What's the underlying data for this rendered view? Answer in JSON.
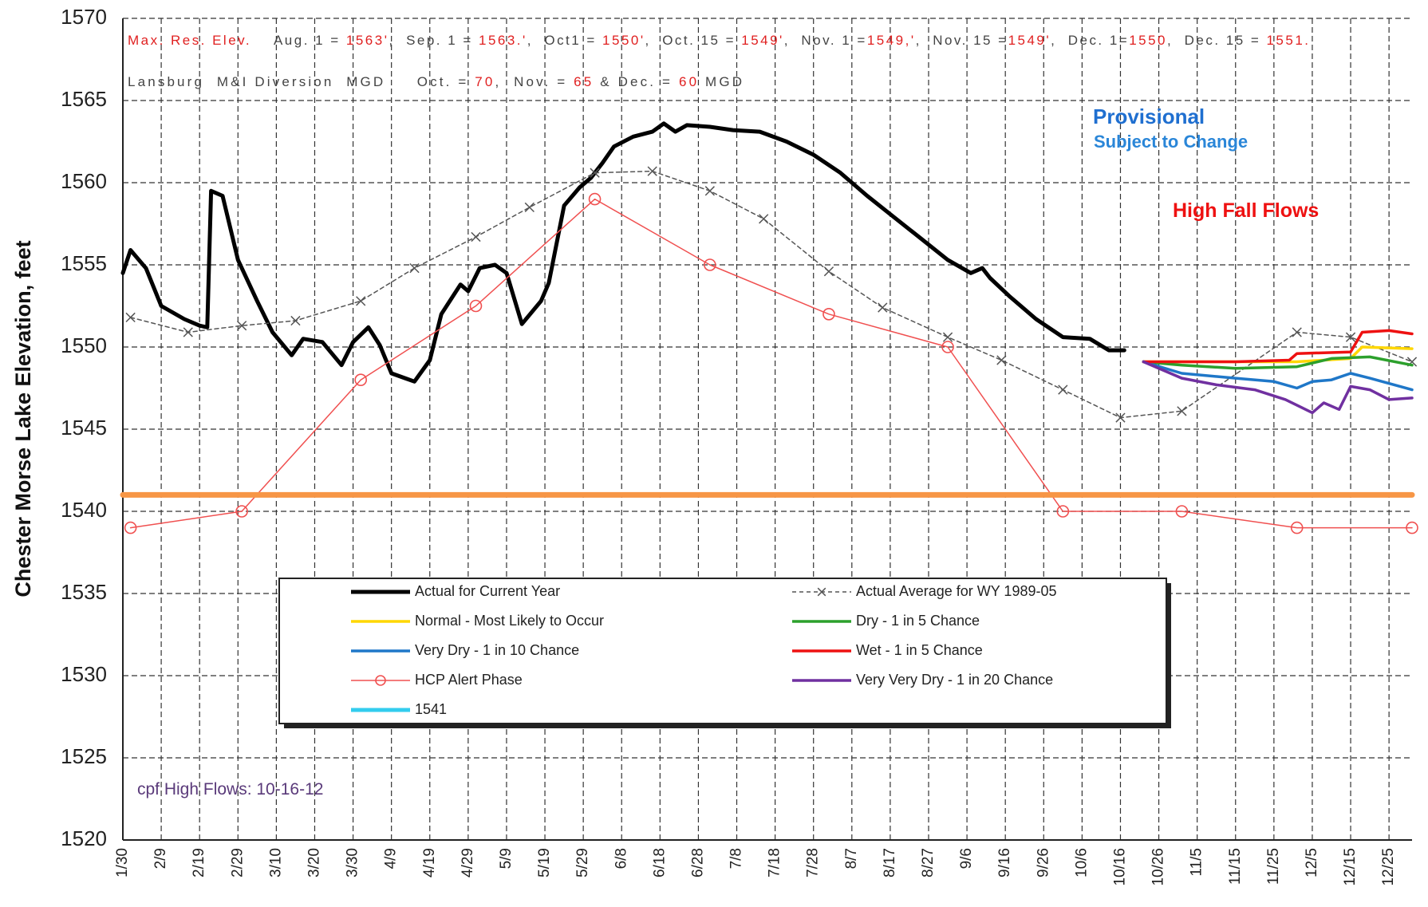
{
  "chart_data": {
    "type": "line",
    "y_label": "Chester Morse Lake Elevation, feet",
    "xlim": [
      "1/30",
      "12/31"
    ],
    "xticks": [
      "1/30",
      "2/9",
      "2/19",
      "2/29",
      "3/10",
      "3/20",
      "3/30",
      "4/9",
      "4/19",
      "4/29",
      "5/9",
      "5/19",
      "5/29",
      "6/8",
      "6/18",
      "6/28",
      "7/8",
      "7/18",
      "7/28",
      "8/7",
      "8/17",
      "8/27",
      "9/6",
      "9/16",
      "9/26",
      "10/6",
      "10/16",
      "10/26",
      "11/5",
      "11/15",
      "11/25",
      "12/5",
      "12/15",
      "12/25"
    ],
    "ylim": [
      1520,
      1570
    ],
    "yticks": [
      1520,
      1525,
      1530,
      1535,
      1540,
      1545,
      1550,
      1555,
      1560,
      1565,
      1570
    ],
    "grid": true,
    "series": [
      {
        "name": "Actual for Current Year",
        "color": "#000000",
        "width": 5,
        "dash": false,
        "x": [
          "1/30",
          "2/1",
          "2/5",
          "2/9",
          "2/15",
          "2/19",
          "2/21",
          "2/22",
          "2/25",
          "2/29",
          "3/5",
          "3/9",
          "3/14",
          "3/17",
          "3/22",
          "3/27",
          "3/30",
          "4/3",
          "4/6",
          "4/9",
          "4/15",
          "4/19",
          "4/22",
          "4/27",
          "4/29",
          "5/2",
          "5/6",
          "5/9",
          "5/13",
          "5/18",
          "5/20",
          "5/24",
          "5/28",
          "5/31",
          "6/3",
          "6/6",
          "6/11",
          "6/16",
          "6/19",
          "6/22",
          "6/25",
          "7/1",
          "7/7",
          "7/14",
          "7/21",
          "7/28",
          "8/4",
          "8/11",
          "8/18",
          "8/25",
          "9/1",
          "9/7",
          "9/10",
          "9/12",
          "9/17",
          "9/24",
          "10/1",
          "10/8",
          "10/13",
          "10/17"
        ],
        "values": [
          1554.5,
          1555.9,
          1554.8,
          1552.5,
          1551.7,
          1551.3,
          1551.2,
          1559.5,
          1559.2,
          1555.3,
          1552.8,
          1550.9,
          1549.5,
          1550.5,
          1550.3,
          1548.9,
          1550.3,
          1551.2,
          1550.1,
          1548.4,
          1547.9,
          1549.2,
          1552,
          1553.8,
          1553.4,
          1554.8,
          1555,
          1554.5,
          1551.4,
          1552.8,
          1553.9,
          1558.6,
          1559.7,
          1560.3,
          1561.2,
          1562.2,
          1562.8,
          1563.1,
          1563.6,
          1563.1,
          1563.5,
          1563.4,
          1563.2,
          1563.1,
          1562.5,
          1561.7,
          1560.6,
          1559.2,
          1557.9,
          1556.6,
          1555.3,
          1554.5,
          1554.8,
          1554.2,
          1553.1,
          1551.7,
          1550.6,
          1550.5,
          1549.8,
          1549.8
        ]
      },
      {
        "name": "Actual Average for WY 1989-05",
        "color": "#555555",
        "width": 1.5,
        "dash": true,
        "marker": "x",
        "x": [
          "2/1",
          "2/16",
          "3/1",
          "3/15",
          "4/1",
          "4/15",
          "5/1",
          "5/15",
          "6/1",
          "6/16",
          "7/1",
          "7/15",
          "8/1",
          "8/15",
          "9/1",
          "9/15",
          "10/1",
          "10/16",
          "11/1",
          "12/1",
          "12/15",
          "12/31"
        ],
        "values": [
          1551.8,
          1550.9,
          1551.3,
          1551.6,
          1552.8,
          1554.8,
          1556.7,
          1558.5,
          1560.6,
          1560.7,
          1559.5,
          1557.8,
          1554.6,
          1552.4,
          1550.6,
          1549.2,
          1547.4,
          1545.7,
          1546.1,
          1550.9,
          1550.6,
          1549.1
        ]
      },
      {
        "name": "Normal - Most Likely to Occur",
        "color": "#ffd700",
        "width": 3.5,
        "dash": false,
        "x": [
          "10/22",
          "12/1",
          "12/15",
          "12/18",
          "12/31"
        ],
        "values": [
          1549.1,
          1549.1,
          1549.3,
          1550.0,
          1549.9
        ]
      },
      {
        "name": "Dry - 1 in 5 Chance",
        "color": "#2ca02c",
        "width": 3.5,
        "dash": false,
        "x": [
          "10/22",
          "11/1",
          "11/15",
          "12/1",
          "12/10",
          "12/20",
          "12/31"
        ],
        "values": [
          1549.1,
          1548.9,
          1548.7,
          1548.8,
          1549.3,
          1549.4,
          1548.9
        ]
      },
      {
        "name": "Very Dry - 1 in 10 Chance",
        "color": "#1f77c8",
        "width": 3.5,
        "dash": false,
        "x": [
          "10/22",
          "11/1",
          "11/15",
          "11/25",
          "12/1",
          "12/5",
          "12/10",
          "12/15",
          "12/20",
          "12/31"
        ],
        "values": [
          1549.1,
          1548.4,
          1548.1,
          1547.9,
          1547.5,
          1547.9,
          1548.0,
          1548.4,
          1548.1,
          1547.4
        ]
      },
      {
        "name": "Wet - 1 in 5 Chance",
        "color": "#ee1111",
        "width": 3.5,
        "dash": false,
        "x": [
          "10/22",
          "11/15",
          "11/29",
          "12/1",
          "12/15",
          "12/18",
          "12/25",
          "12/31"
        ],
        "values": [
          1549.1,
          1549.1,
          1549.2,
          1549.6,
          1549.7,
          1550.9,
          1551.0,
          1550.8
        ]
      },
      {
        "name": "HCP Alert Phase",
        "color": "#f05050",
        "width": 1.5,
        "dash": false,
        "marker": "circle",
        "x": [
          "2/1",
          "3/1",
          "4/1",
          "5/1",
          "6/1",
          "7/1",
          "8/1",
          "9/1",
          "10/1",
          "11/1",
          "12/1",
          "12/31"
        ],
        "values": [
          1539,
          1540,
          1548,
          1552.5,
          1559,
          1555,
          1552,
          1550,
          1540,
          1540,
          1539,
          1539
        ]
      },
      {
        "name": "Very Very Dry - 1 in 20 Chance",
        "color": "#7030a0",
        "width": 3.5,
        "dash": false,
        "x": [
          "10/22",
          "11/1",
          "11/10",
          "11/20",
          "11/28",
          "12/5",
          "12/8",
          "12/12",
          "12/15",
          "12/20",
          "12/25",
          "12/31"
        ],
        "values": [
          1549.1,
          1548.1,
          1547.7,
          1547.4,
          1546.8,
          1546.0,
          1546.6,
          1546.2,
          1547.6,
          1547.4,
          1546.8,
          1546.9
        ]
      },
      {
        "name": "1541",
        "color": "#f79646",
        "legend_color": "#33ccee",
        "width": 7,
        "dash": false,
        "x": [
          "1/30",
          "12/31"
        ],
        "values": [
          1541,
          1541
        ]
      }
    ],
    "annotations": {
      "reservoir_note": [
        {
          "text": "Max. Res. Elev.",
          "color": "#e02020"
        },
        {
          "text": "    Aug. 1 = ",
          "color": "#444444"
        },
        {
          "text": "1563'",
          "color": "#e02020"
        },
        {
          "text": ",  Sep. 1 = ",
          "color": "#444444"
        },
        {
          "text": "1563.'",
          "color": "#e02020"
        },
        {
          "text": ",  Oct1 = ",
          "color": "#444444"
        },
        {
          "text": "1550'",
          "color": "#e02020"
        },
        {
          "text": ",  Oct. 15 = ",
          "color": "#444444"
        },
        {
          "text": "1549'",
          "color": "#e02020"
        },
        {
          "text": ",  Nov. 1 =",
          "color": "#444444"
        },
        {
          "text": "1549,'",
          "color": "#e02020"
        },
        {
          "text": ",  Nov. 15 =",
          "color": "#444444"
        },
        {
          "text": "1549'",
          "color": "#e02020"
        },
        {
          "text": ",  Dec. 1=",
          "color": "#444444"
        },
        {
          "text": "1550",
          "color": "#e02020"
        },
        {
          "text": ",  Dec. 15 = ",
          "color": "#444444"
        },
        {
          "text": "1551.",
          "color": "#e02020"
        }
      ],
      "diversion_note": [
        {
          "text": "Lansburg  M&I Diversion  MGD     Oct. = ",
          "color": "#444444"
        },
        {
          "text": "70",
          "color": "#e02020"
        },
        {
          "text": ",  Nov. = ",
          "color": "#444444"
        },
        {
          "text": "65",
          "color": "#e02020"
        },
        {
          "text": " & Dec. = ",
          "color": "#444444"
        },
        {
          "text": "60",
          "color": "#e02020"
        },
        {
          "text": " MGD",
          "color": "#444444"
        }
      ],
      "provisional": "Provisional",
      "subject_to_change": "Subject to Change",
      "scenario": "High Fall Flows",
      "footnote": "cpf High Flows: 10-16-12"
    }
  }
}
